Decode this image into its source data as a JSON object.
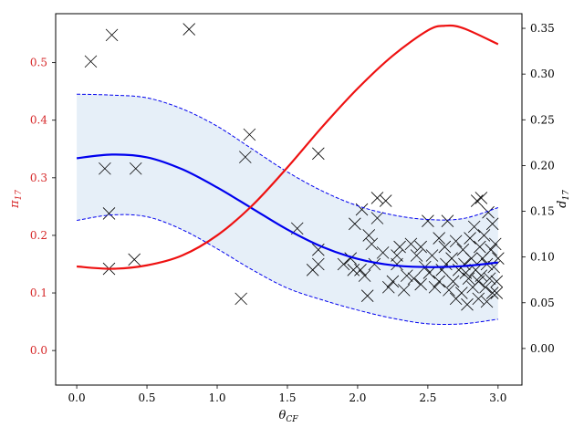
{
  "chart_data": {
    "type": "scatter",
    "title": "",
    "xlabel": "θ",
    "xlabel_sub": "CF",
    "ylabel_left": "π",
    "ylabel_left_sub": "17",
    "ylabel_right": "d",
    "ylabel_right_sub": "17",
    "xlim": [
      -0.15,
      3.17
    ],
    "ylim_left": [
      -0.06,
      0.585
    ],
    "ylim_right": [
      -0.04,
      0.366
    ],
    "x_ticks": [
      0.0,
      0.5,
      1.0,
      1.5,
      2.0,
      2.5,
      3.0
    ],
    "x_tick_labels": [
      "0.0",
      "0.5",
      "1.0",
      "1.5",
      "2.0",
      "2.5",
      "3.0"
    ],
    "y_left_ticks": [
      0.0,
      0.1,
      0.2,
      0.3,
      0.4,
      0.5
    ],
    "y_left_tick_labels": [
      "0.0",
      "0.1",
      "0.2",
      "0.3",
      "0.4",
      "0.5"
    ],
    "y_right_ticks": [
      0.0,
      0.05,
      0.1,
      0.15,
      0.2,
      0.25,
      0.3,
      0.35
    ],
    "y_right_tick_labels": [
      "0.00",
      "0.05",
      "0.10",
      "0.15",
      "0.20",
      "0.25",
      "0.30",
      "0.35"
    ],
    "grid": false,
    "legend": "none",
    "colors": {
      "red_curve": "#ee1111",
      "blue_curve": "#0000ee",
      "band_fill": "#e6eff8",
      "markers": "#000000",
      "left_axis_text": "#d62728"
    },
    "series": [
      {
        "axis": "left",
        "style": "line",
        "x": [
          0.0,
          0.25,
          0.5,
          0.75,
          1.0,
          1.25,
          1.5,
          1.75,
          2.0,
          2.25,
          2.5,
          2.62,
          2.75,
          3.0
        ],
        "y": [
          0.146,
          0.142,
          0.148,
          0.165,
          0.2,
          0.252,
          0.318,
          0.389,
          0.455,
          0.512,
          0.556,
          0.564,
          0.56,
          0.532
        ]
      },
      {
        "axis": "right",
        "style": "line",
        "x": [
          0.0,
          0.25,
          0.5,
          0.75,
          1.0,
          1.25,
          1.5,
          1.75,
          2.0,
          2.25,
          2.5,
          2.75,
          3.0
        ],
        "y": [
          0.208,
          0.212,
          0.209,
          0.196,
          0.176,
          0.153,
          0.13,
          0.111,
          0.098,
          0.091,
          0.089,
          0.09,
          0.094
        ]
      },
      {
        "axis": "right",
        "style": "dashed",
        "x": [
          0.0,
          0.25,
          0.5,
          0.75,
          1.0,
          1.25,
          1.5,
          1.75,
          2.0,
          2.25,
          2.5,
          2.75,
          3.0
        ],
        "y": [
          0.278,
          0.277,
          0.274,
          0.262,
          0.243,
          0.218,
          0.193,
          0.172,
          0.156,
          0.146,
          0.141,
          0.142,
          0.154
        ]
      },
      {
        "axis": "right",
        "style": "dashed",
        "x": [
          0.0,
          0.25,
          0.5,
          0.75,
          1.0,
          1.25,
          1.5,
          1.75,
          2.0,
          2.25,
          2.5,
          2.75,
          3.0
        ],
        "y": [
          0.14,
          0.146,
          0.144,
          0.13,
          0.109,
          0.086,
          0.066,
          0.053,
          0.042,
          0.033,
          0.027,
          0.027,
          0.032
        ]
      },
      {
        "axis": "left",
        "style": "markers",
        "marker": "x",
        "points": [
          [
            0.1,
            0.502
          ],
          [
            0.25,
            0.548
          ],
          [
            0.8,
            0.558
          ],
          [
            0.2,
            0.316
          ],
          [
            0.42,
            0.316
          ],
          [
            1.2,
            0.336
          ],
          [
            1.23,
            0.375
          ],
          [
            1.72,
            0.342
          ],
          [
            0.23,
            0.238
          ],
          [
            0.23,
            0.142
          ],
          [
            0.41,
            0.158
          ],
          [
            1.17,
            0.09
          ],
          [
            1.57,
            0.212
          ],
          [
            1.68,
            0.14
          ],
          [
            1.72,
            0.15
          ],
          [
            1.72,
            0.175
          ],
          [
            1.9,
            0.15
          ],
          [
            1.95,
            0.16
          ],
          [
            1.98,
            0.22
          ],
          [
            2.03,
            0.245
          ],
          [
            2.02,
            0.14
          ],
          [
            2.05,
            0.13
          ],
          [
            2.07,
            0.095
          ],
          [
            2.1,
            0.185
          ],
          [
            2.14,
            0.265
          ],
          [
            2.14,
            0.23
          ],
          [
            2.2,
            0.26
          ],
          [
            2.18,
            0.17
          ],
          [
            2.22,
            0.11
          ],
          [
            2.25,
            0.12
          ],
          [
            2.28,
            0.15
          ],
          [
            2.3,
            0.18
          ],
          [
            2.35,
            0.13
          ],
          [
            2.38,
            0.185
          ],
          [
            2.42,
            0.165
          ],
          [
            2.45,
            0.115
          ],
          [
            2.48,
            0.145
          ],
          [
            2.5,
            0.225
          ],
          [
            2.53,
            0.165
          ],
          [
            2.55,
            0.11
          ],
          [
            2.58,
            0.195
          ],
          [
            2.6,
            0.14
          ],
          [
            2.62,
            0.18
          ],
          [
            2.64,
            0.225
          ],
          [
            2.65,
            0.105
          ],
          [
            2.67,
            0.16
          ],
          [
            2.68,
            0.12
          ],
          [
            2.7,
            0.19
          ],
          [
            2.72,
            0.14
          ],
          [
            2.74,
            0.1
          ],
          [
            2.75,
            0.175
          ],
          [
            2.76,
            0.15
          ],
          [
            2.78,
            0.08
          ],
          [
            2.79,
            0.125
          ],
          [
            2.8,
            0.195
          ],
          [
            2.81,
            0.16
          ],
          [
            2.82,
            0.11
          ],
          [
            2.83,
            0.215
          ],
          [
            2.84,
            0.14
          ],
          [
            2.85,
            0.26
          ],
          [
            2.86,
            0.09
          ],
          [
            2.87,
            0.18
          ],
          [
            2.88,
            0.265
          ],
          [
            2.88,
            0.13
          ],
          [
            2.89,
            0.16
          ],
          [
            2.9,
            0.2
          ],
          [
            2.91,
            0.11
          ],
          [
            2.92,
            0.15
          ],
          [
            2.93,
            0.24
          ],
          [
            2.94,
            0.125
          ],
          [
            2.95,
            0.175
          ],
          [
            2.96,
            0.1
          ],
          [
            2.97,
            0.145
          ],
          [
            2.98,
            0.185
          ],
          [
            2.99,
            0.12
          ],
          [
            3.0,
            0.16
          ],
          [
            2.96,
            0.22
          ],
          [
            2.92,
            0.085
          ],
          [
            2.7,
            0.09
          ],
          [
            2.58,
            0.12
          ],
          [
            2.45,
            0.18
          ],
          [
            2.4,
            0.125
          ],
          [
            2.33,
            0.105
          ],
          [
            2.28,
            0.165
          ],
          [
            2.12,
            0.15
          ],
          [
            2.08,
            0.2
          ],
          [
            1.97,
            0.14
          ],
          [
            2.99,
            0.1
          ],
          [
            2.86,
            0.12
          ],
          [
            2.77,
            0.135
          ],
          [
            2.63,
            0.15
          ],
          [
            2.51,
            0.135
          ]
        ]
      }
    ]
  }
}
